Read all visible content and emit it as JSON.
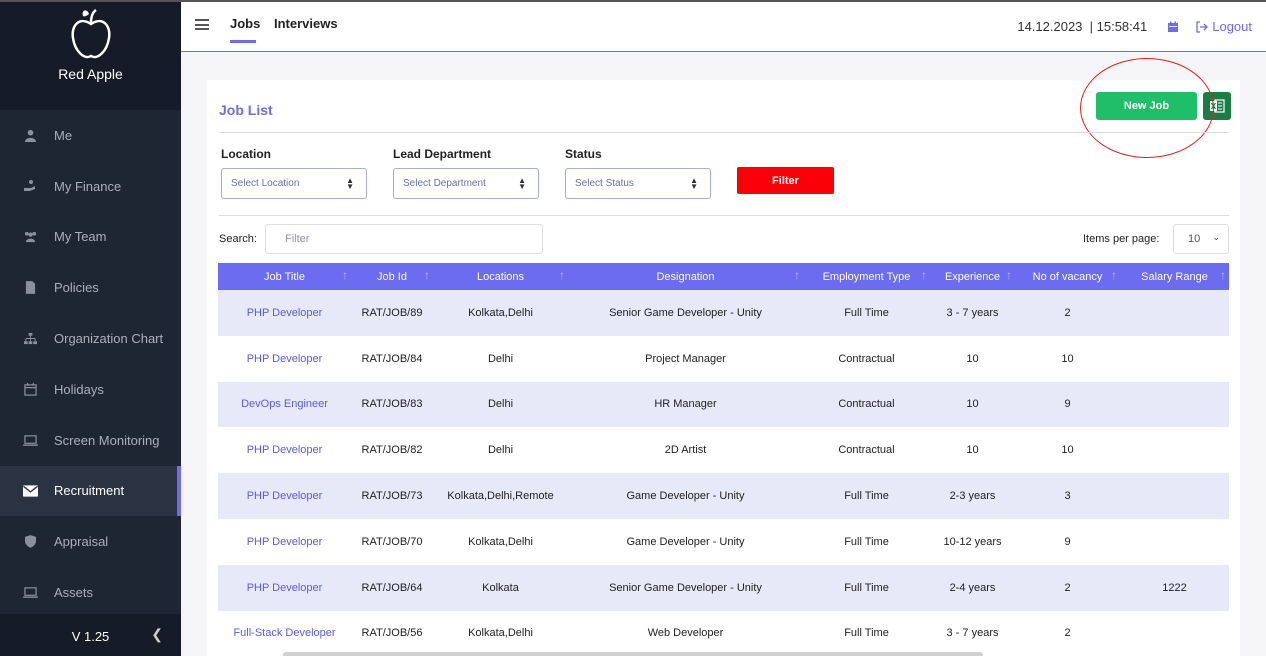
{
  "brand": {
    "name": "Red Apple"
  },
  "sidebar": {
    "items": [
      {
        "label": "Me",
        "icon": "user-icon"
      },
      {
        "label": "My Finance",
        "icon": "finance-icon"
      },
      {
        "label": "My Team",
        "icon": "team-icon"
      },
      {
        "label": "Policies",
        "icon": "document-icon"
      },
      {
        "label": "Organization Chart",
        "icon": "org-chart-icon"
      },
      {
        "label": "Holidays",
        "icon": "calendar-icon"
      },
      {
        "label": "Screen Monitoring",
        "icon": "monitor-icon"
      },
      {
        "label": "Recruitment",
        "icon": "envelope-icon",
        "active": true
      },
      {
        "label": "Appraisal",
        "icon": "shield-icon"
      },
      {
        "label": "Assets",
        "icon": "laptop-icon"
      }
    ],
    "version": "V 1.25"
  },
  "header": {
    "tabs": [
      {
        "label": "Jobs",
        "active": true
      },
      {
        "label": "Interviews",
        "active": false
      }
    ],
    "datetime": "14.12.2023  | 15:58:41",
    "logout_label": "Logout"
  },
  "job_list": {
    "title": "Job List",
    "new_job_label": "New Job",
    "filters": {
      "location": {
        "label": "Location",
        "placeholder": "Select Location"
      },
      "department": {
        "label": "Lead Department",
        "placeholder": "Select Department"
      },
      "status": {
        "label": "Status",
        "placeholder": "Select Status"
      },
      "filter_label": "Filter"
    },
    "search": {
      "label": "Search:",
      "placeholder": "Filter"
    },
    "items_per_page": {
      "label": "Items per page:",
      "value": "10"
    },
    "columns": [
      "Job Title",
      "Job Id",
      "Locations",
      "Designation",
      "Employment Type",
      "Experience",
      "No of vacancy",
      "Salary Range"
    ],
    "rows": [
      [
        "PHP Developer",
        "RAT/JOB/89",
        "Kolkata,Delhi",
        "Senior Game Developer - Unity",
        "Full Time",
        "3 - 7 years",
        "2",
        ""
      ],
      [
        "PHP Developer",
        "RAT/JOB/84",
        "Delhi",
        "Project Manager",
        "Contractual",
        "10",
        "10",
        ""
      ],
      [
        "DevOps Engineer",
        "RAT/JOB/83",
        "Delhi",
        "HR Manager",
        "Contractual",
        "10",
        "9",
        ""
      ],
      [
        "PHP Developer",
        "RAT/JOB/82",
        "Delhi",
        "2D Artist",
        "Contractual",
        "10",
        "10",
        ""
      ],
      [
        "PHP Developer",
        "RAT/JOB/73",
        "Kolkata,Delhi,Remote",
        "Game Developer - Unity",
        "Full Time",
        "2-3 years",
        "3",
        ""
      ],
      [
        "PHP Developer",
        "RAT/JOB/70",
        "Kolkata,Delhi",
        "Game Developer - Unity",
        "Full Time",
        "10-12 years",
        "9",
        ""
      ],
      [
        "PHP Developer",
        "RAT/JOB/64",
        "Kolkata",
        "Senior Game Developer - Unity",
        "Full Time",
        "2-4 years",
        "2",
        "1222"
      ],
      [
        "Full-Stack Developer",
        "RAT/JOB/56",
        "Kolkata,Delhi",
        "Web Developer",
        "Full Time",
        "3 - 7 years",
        "2",
        ""
      ]
    ]
  },
  "colors": {
    "accent": "#6c6cf0",
    "new_job": "#1fbf6a",
    "filter": "#fb0007",
    "sidebar": "#1f2633"
  }
}
